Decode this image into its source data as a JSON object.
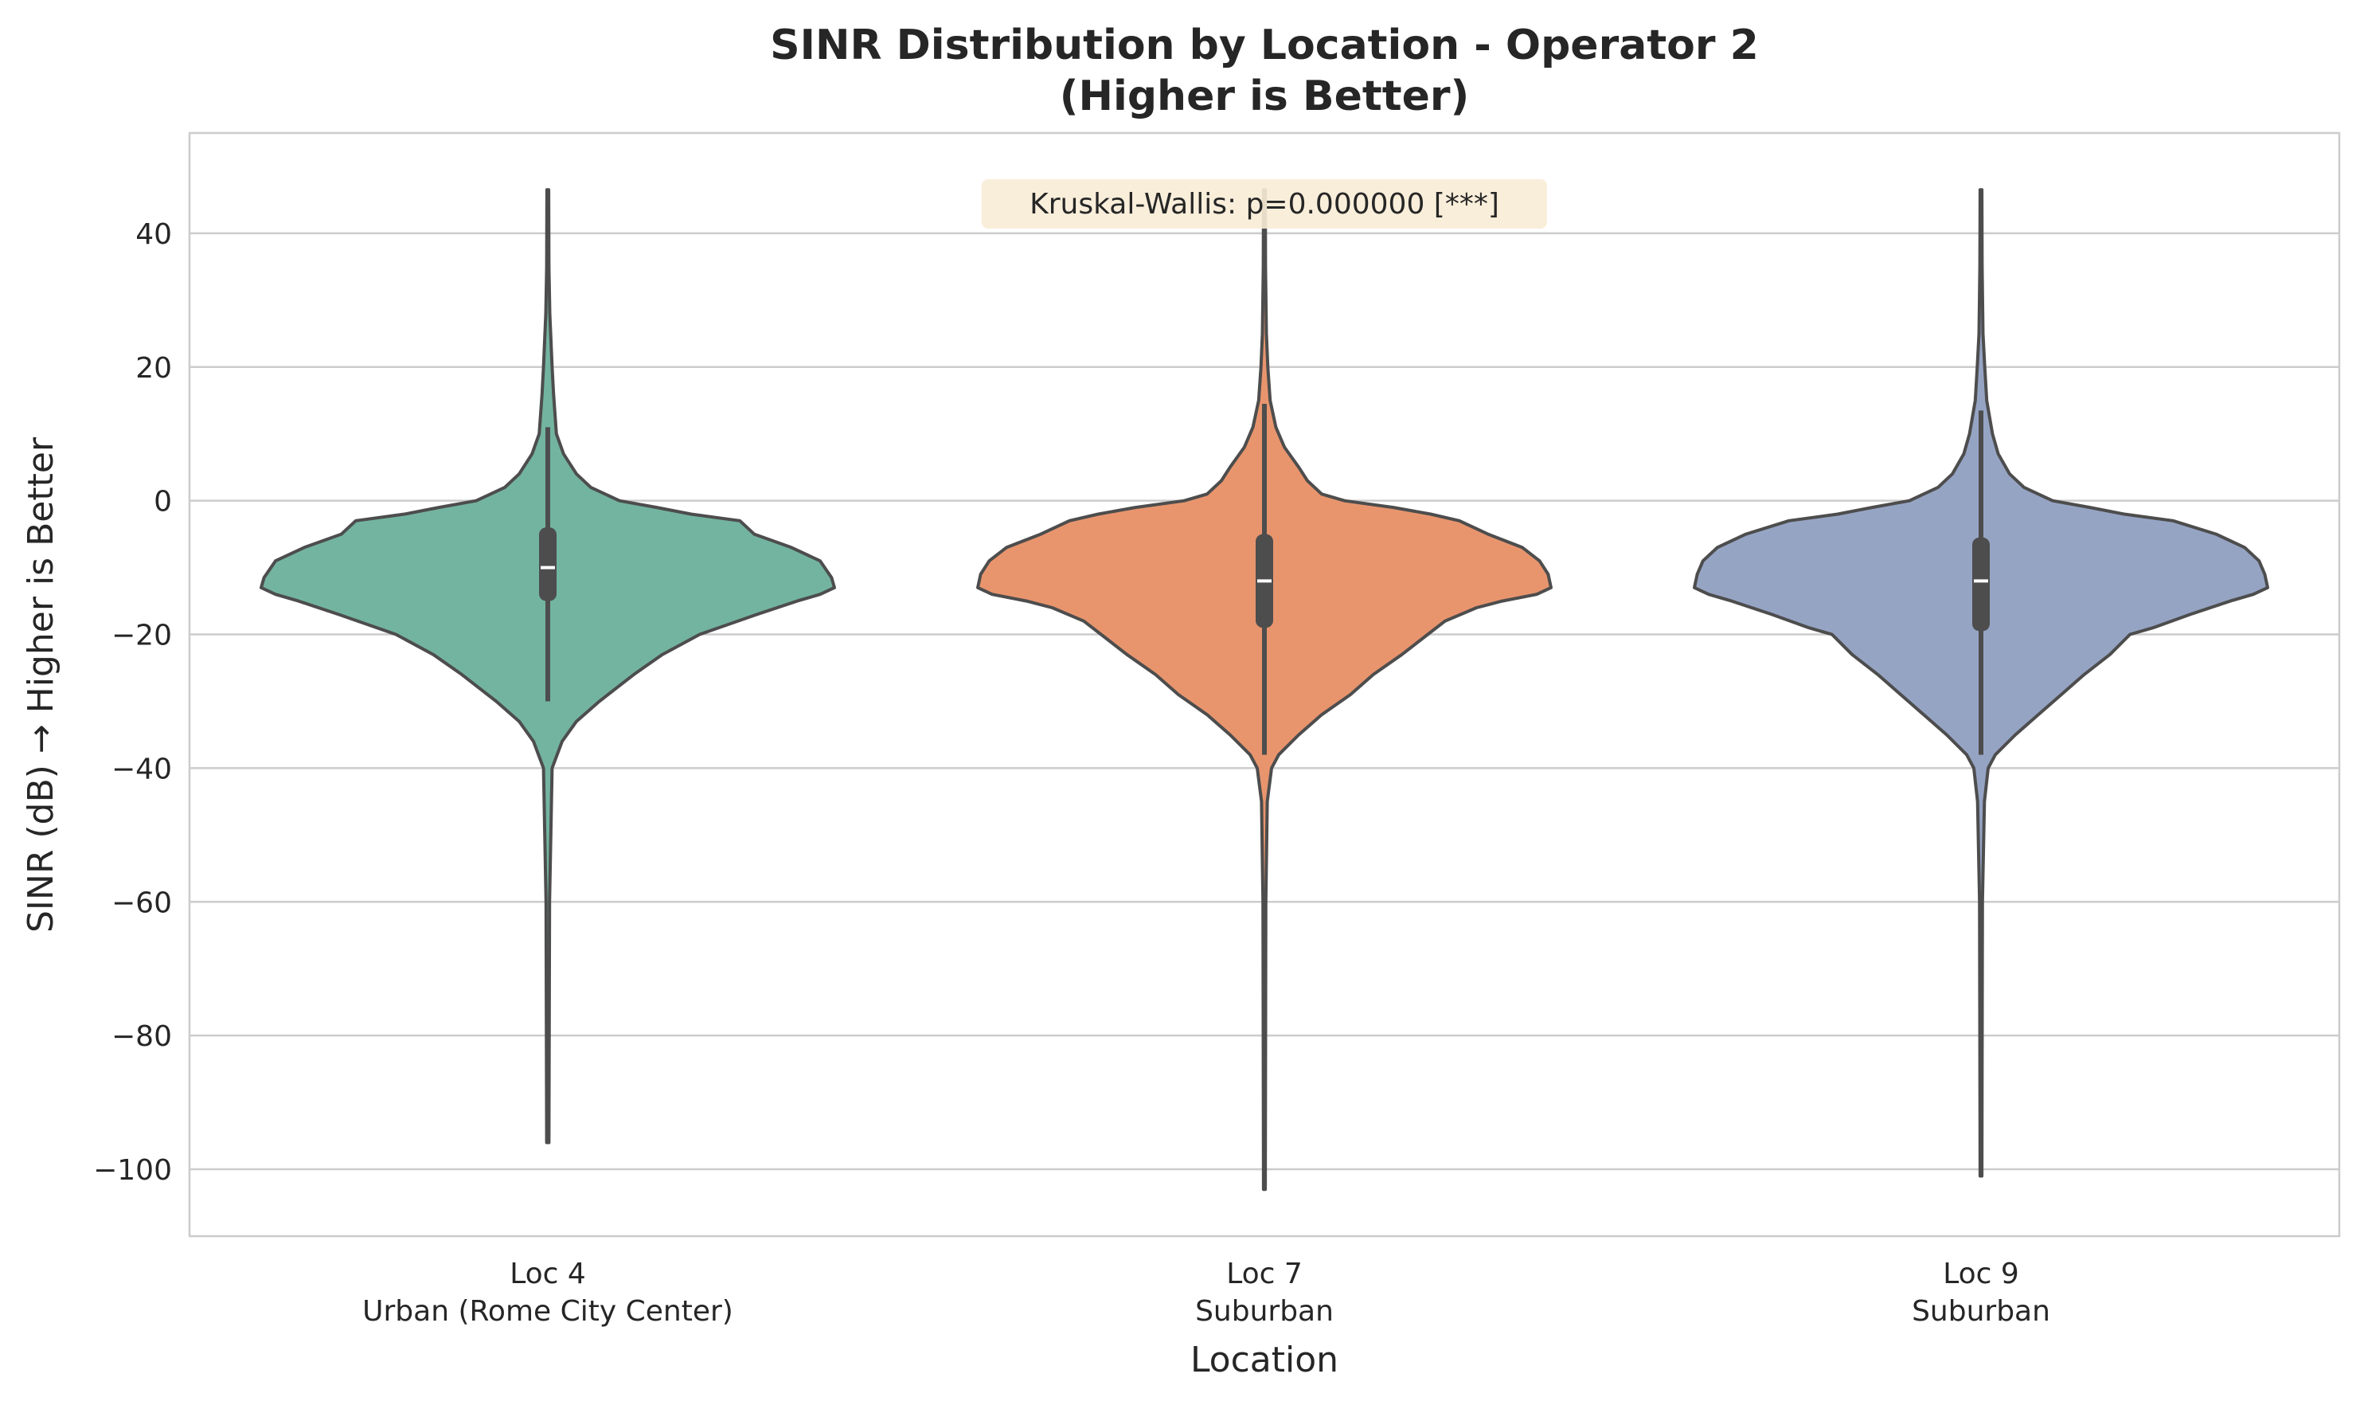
{
  "chart_data": {
    "type": "violin",
    "title": "SINR Distribution by Location - Operator 2",
    "subtitle": "(Higher is Better)",
    "xlabel": "Location",
    "ylabel": "SINR (dB) → Higher is Better",
    "ylim": [
      -110,
      55
    ],
    "yticks": [
      40,
      20,
      0,
      -20,
      -40,
      -60,
      -80,
      -100
    ],
    "ytick_labels": [
      "40",
      "20",
      "0",
      "−20",
      "−40",
      "−60",
      "−80",
      "−100"
    ],
    "grid": true,
    "annotation": "Kruskal-Wallis: p=0.000000 [***]",
    "annotation_bg": "#f8ecd6",
    "categories": [
      {
        "name": "Loc 4",
        "sublabel": "Urban (Rome City Center)",
        "color": "#73b4a0",
        "min": -96,
        "max": 46.5,
        "q1": -15,
        "median": -10,
        "q3": -4,
        "whisker_low": -30,
        "whisker_high": 11,
        "profile": [
          [
            -96,
            0.004
          ],
          [
            -60,
            0.006
          ],
          [
            -40,
            0.015
          ],
          [
            -36,
            0.05
          ],
          [
            -33,
            0.1
          ],
          [
            -30,
            0.18
          ],
          [
            -26,
            0.3
          ],
          [
            -23,
            0.4
          ],
          [
            -20,
            0.53
          ],
          [
            -17,
            0.73
          ],
          [
            -15,
            0.87
          ],
          [
            -14,
            0.95
          ],
          [
            -13,
            1.0
          ],
          [
            -11.5,
            0.99
          ],
          [
            -9,
            0.95
          ],
          [
            -7,
            0.85
          ],
          [
            -5,
            0.72
          ],
          [
            -3,
            0.67
          ],
          [
            -2,
            0.5
          ],
          [
            -1,
            0.38
          ],
          [
            0,
            0.25
          ],
          [
            2,
            0.15
          ],
          [
            4,
            0.1
          ],
          [
            7,
            0.055
          ],
          [
            10,
            0.03
          ],
          [
            16,
            0.02
          ],
          [
            20,
            0.015
          ],
          [
            28,
            0.007
          ],
          [
            35,
            0.004
          ],
          [
            46.5,
            0.003
          ]
        ]
      },
      {
        "name": "Loc 7",
        "sublabel": "Suburban",
        "color": "#e8956e",
        "min": -103,
        "max": 46.5,
        "q1": -19,
        "median": -12,
        "q3": -5,
        "whisker_low": -38,
        "whisker_high": 14.5,
        "profile": [
          [
            -103,
            0.003
          ],
          [
            -60,
            0.005
          ],
          [
            -45,
            0.01
          ],
          [
            -40,
            0.025
          ],
          [
            -38,
            0.05
          ],
          [
            -35,
            0.12
          ],
          [
            -32,
            0.2
          ],
          [
            -29,
            0.3
          ],
          [
            -26,
            0.38
          ],
          [
            -23,
            0.48
          ],
          [
            -20,
            0.57
          ],
          [
            -18,
            0.63
          ],
          [
            -16,
            0.74
          ],
          [
            -15,
            0.83
          ],
          [
            -14,
            0.95
          ],
          [
            -13,
            1.0
          ],
          [
            -11,
            0.99
          ],
          [
            -9,
            0.96
          ],
          [
            -7,
            0.9
          ],
          [
            -5,
            0.78
          ],
          [
            -3,
            0.68
          ],
          [
            -2,
            0.58
          ],
          [
            -1,
            0.45
          ],
          [
            0,
            0.28
          ],
          [
            1,
            0.2
          ],
          [
            3,
            0.15
          ],
          [
            5,
            0.12
          ],
          [
            8,
            0.07
          ],
          [
            11,
            0.04
          ],
          [
            15,
            0.02
          ],
          [
            20,
            0.012
          ],
          [
            25,
            0.007
          ],
          [
            35,
            0.004
          ],
          [
            46.5,
            0.003
          ]
        ]
      },
      {
        "name": "Loc 9",
        "sublabel": "Suburban",
        "color": "#96a4c4",
        "min": -101,
        "max": 46.5,
        "q1": -19.5,
        "median": -12,
        "q3": -5.5,
        "whisker_low": -38,
        "whisker_high": 13.5,
        "profile": [
          [
            -101,
            0.003
          ],
          [
            -60,
            0.005
          ],
          [
            -45,
            0.012
          ],
          [
            -40,
            0.025
          ],
          [
            -38,
            0.05
          ],
          [
            -35,
            0.12
          ],
          [
            -32,
            0.2
          ],
          [
            -29,
            0.28
          ],
          [
            -26,
            0.36
          ],
          [
            -23,
            0.45
          ],
          [
            -20,
            0.52
          ],
          [
            -19,
            0.6
          ],
          [
            -17,
            0.73
          ],
          [
            -15,
            0.87
          ],
          [
            -14,
            0.95
          ],
          [
            -13,
            1.0
          ],
          [
            -11,
            0.99
          ],
          [
            -9,
            0.97
          ],
          [
            -7,
            0.92
          ],
          [
            -5,
            0.82
          ],
          [
            -3,
            0.67
          ],
          [
            -2,
            0.5
          ],
          [
            -1,
            0.38
          ],
          [
            0,
            0.25
          ],
          [
            2,
            0.15
          ],
          [
            4,
            0.1
          ],
          [
            7,
            0.06
          ],
          [
            10,
            0.04
          ],
          [
            15,
            0.02
          ],
          [
            20,
            0.013
          ],
          [
            25,
            0.007
          ],
          [
            35,
            0.004
          ],
          [
            46.5,
            0.003
          ]
        ]
      }
    ]
  }
}
